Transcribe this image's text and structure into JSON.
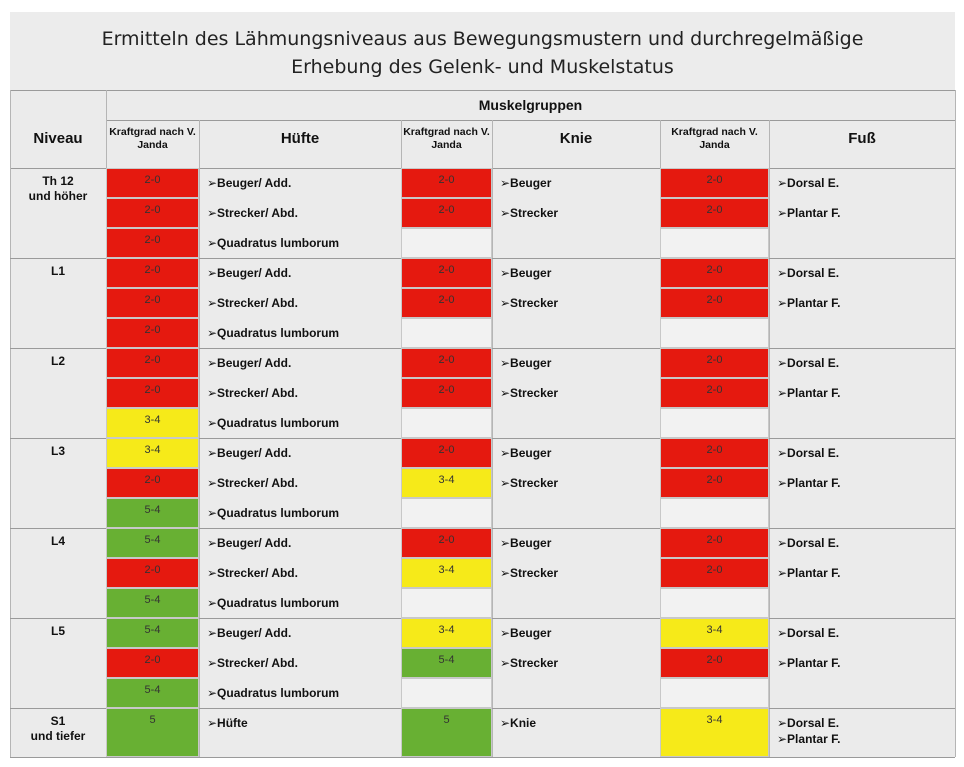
{
  "header": {
    "title": [
      "Ermitteln des Lähmungsniveaus aus Bewegungsmustern und durchregelmäßige",
      "Erhebung des Gelenk- und Muskelstatus"
    ]
  },
  "table": {
    "group_header": "Muskelgruppen",
    "columns": {
      "level": "Niveau",
      "grade_hip": "Kraftgrad nach V. Janda",
      "hip": "Hüfte",
      "grade_knee": "Kraftgrad nach V. Janda",
      "knee": "Knie",
      "grade_foot": "Kraftgrad nach V. Janda",
      "foot": "Fuß"
    },
    "grade_colors": {
      "2-0": "#e5190f",
      "3-4": "#f6ea19",
      "5-4": "#68b033",
      "5": "#68b033"
    },
    "rows": [
      {
        "level": [
          "Th 12",
          "und höher"
        ],
        "hip": [
          {
            "grade": "2-0",
            "label": "➢Beuger/ Add."
          },
          {
            "grade": "2-0",
            "label": "➢Strecker/ Abd."
          },
          {
            "grade": "2-0",
            "label": "➢Quadratus lumborum"
          }
        ],
        "knee": [
          {
            "grade": "2-0",
            "label": "➢Beuger"
          },
          {
            "grade": "2-0",
            "label": "➢Strecker"
          }
        ],
        "foot": [
          {
            "grade": "2-0",
            "label": "➢Dorsal E."
          },
          {
            "grade": "2-0",
            "label": "➢Plantar F."
          }
        ]
      },
      {
        "level": [
          "L1"
        ],
        "hip": [
          {
            "grade": "2-0",
            "label": "➢Beuger/ Add."
          },
          {
            "grade": "2-0",
            "label": "➢Strecker/ Abd."
          },
          {
            "grade": "2-0",
            "label": "➢Quadratus lumborum"
          }
        ],
        "knee": [
          {
            "grade": "2-0",
            "label": "➢Beuger"
          },
          {
            "grade": "2-0",
            "label": "➢Strecker"
          }
        ],
        "foot": [
          {
            "grade": "2-0",
            "label": "➢Dorsal E."
          },
          {
            "grade": "2-0",
            "label": "➢Plantar F."
          }
        ]
      },
      {
        "level": [
          "L2"
        ],
        "hip": [
          {
            "grade": "2-0",
            "label": "➢Beuger/ Add."
          },
          {
            "grade": "2-0",
            "label": "➢Strecker/ Abd."
          },
          {
            "grade": "3-4",
            "label": "➢Quadratus lumborum"
          }
        ],
        "knee": [
          {
            "grade": "2-0",
            "label": "➢Beuger"
          },
          {
            "grade": "2-0",
            "label": "➢Strecker"
          }
        ],
        "foot": [
          {
            "grade": "2-0",
            "label": "➢Dorsal E."
          },
          {
            "grade": "2-0",
            "label": "➢Plantar F."
          }
        ]
      },
      {
        "level": [
          "L3"
        ],
        "hip": [
          {
            "grade": "3-4",
            "label": "➢Beuger/ Add."
          },
          {
            "grade": "2-0",
            "label": "➢Strecker/ Abd."
          },
          {
            "grade": "5-4",
            "label": "➢Quadratus lumborum"
          }
        ],
        "knee": [
          {
            "grade": "2-0",
            "label": "➢Beuger"
          },
          {
            "grade": "3-4",
            "label": "➢Strecker"
          }
        ],
        "foot": [
          {
            "grade": "2-0",
            "label": "➢Dorsal E."
          },
          {
            "grade": "2-0",
            "label": "➢Plantar F."
          }
        ]
      },
      {
        "level": [
          "L4"
        ],
        "hip": [
          {
            "grade": "5-4",
            "label": "➢Beuger/ Add."
          },
          {
            "grade": "2-0",
            "label": "➢Strecker/ Abd."
          },
          {
            "grade": "5-4",
            "label": "➢Quadratus lumborum"
          }
        ],
        "knee": [
          {
            "grade": "2-0",
            "label": "➢Beuger"
          },
          {
            "grade": "3-4",
            "label": "➢Strecker"
          }
        ],
        "foot": [
          {
            "grade": "2-0",
            "label": "➢Dorsal E."
          },
          {
            "grade": "2-0",
            "label": "➢Plantar F."
          }
        ]
      },
      {
        "level": [
          "L5"
        ],
        "hip": [
          {
            "grade": "5-4",
            "label": "➢Beuger/ Add."
          },
          {
            "grade": "2-0",
            "label": "➢Strecker/ Abd."
          },
          {
            "grade": "5-4",
            "label": "➢Quadratus lumborum"
          }
        ],
        "knee": [
          {
            "grade": "3-4",
            "label": "➢Beuger"
          },
          {
            "grade": "5-4",
            "label": "➢Strecker"
          }
        ],
        "foot": [
          {
            "grade": "3-4",
            "label": "➢Dorsal E."
          },
          {
            "grade": "2-0",
            "label": "➢Plantar F."
          }
        ]
      },
      {
        "level": [
          "S1",
          "und tiefer"
        ],
        "hip": [
          {
            "grade": "5",
            "label": "➢Hüfte"
          }
        ],
        "knee": [
          {
            "grade": "5",
            "label": "➢Knie"
          }
        ],
        "foot": [
          {
            "grade": "3-4",
            "label": "➢Dorsal E."
          },
          {
            "label": "➢Plantar F."
          }
        ]
      }
    ]
  }
}
